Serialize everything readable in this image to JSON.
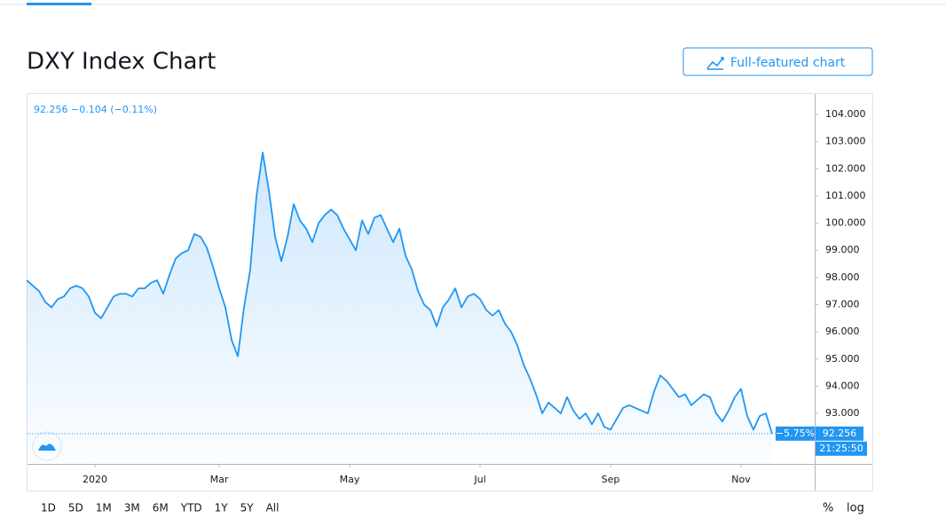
{
  "page": {
    "title": "DXY Index Chart",
    "button": "Full-featured chart"
  },
  "chart_data": {
    "type": "line",
    "legend_text": "92.256 −0.104 (−0.11%)",
    "change_label": "−5.75%",
    "current_price": 92.256,
    "countdown": "21:25:50",
    "color": "#2196f3",
    "categories": [
      null,
      null,
      null,
      null,
      null,
      null,
      null,
      null,
      null,
      null,
      null,
      "2020",
      null,
      null,
      null,
      null,
      null,
      null,
      null,
      null,
      null,
      null,
      null,
      null,
      null,
      null,
      null,
      null,
      null,
      null,
      null,
      "Mar",
      null,
      null,
      null,
      null,
      null,
      null,
      null,
      null,
      null,
      null,
      null,
      null,
      null,
      null,
      null,
      null,
      null,
      null,
      null,
      null,
      "May",
      null,
      null,
      null,
      null,
      null,
      null,
      null,
      null,
      null,
      null,
      null,
      null,
      null,
      null,
      null,
      null,
      null,
      null,
      null,
      null,
      "Jul",
      null,
      null,
      null,
      null,
      null,
      null,
      null,
      null,
      null,
      null,
      null,
      null,
      null,
      null,
      null,
      null,
      null,
      null,
      null,
      null,
      "Sep",
      null,
      null,
      null,
      null,
      null,
      null,
      null,
      null,
      null,
      null,
      null,
      null,
      null,
      null,
      null,
      null,
      null,
      null,
      null,
      null,
      "Nov",
      null,
      null,
      null,
      null,
      null
    ],
    "values": [
      97.9,
      97.7,
      97.5,
      97.1,
      96.9,
      97.2,
      97.3,
      97.6,
      97.7,
      97.6,
      97.3,
      96.7,
      96.5,
      96.9,
      97.3,
      97.4,
      97.4,
      97.3,
      97.6,
      97.6,
      97.8,
      97.9,
      97.4,
      98.1,
      98.7,
      98.9,
      99.0,
      99.6,
      99.5,
      99.1,
      98.4,
      97.6,
      96.9,
      95.7,
      95.1,
      96.9,
      98.3,
      101.0,
      102.6,
      101.2,
      99.5,
      98.6,
      99.5,
      100.7,
      100.1,
      99.8,
      99.3,
      100.0,
      100.3,
      100.5,
      100.3,
      99.8,
      99.4,
      99.0,
      100.1,
      99.6,
      100.2,
      100.3,
      99.8,
      99.3,
      99.8,
      98.8,
      98.3,
      97.5,
      97.0,
      96.8,
      96.2,
      96.9,
      97.2,
      97.6,
      96.9,
      97.3,
      97.4,
      97.2,
      96.8,
      96.6,
      96.8,
      96.3,
      96.0,
      95.5,
      94.8,
      94.3,
      93.7,
      93.0,
      93.4,
      93.2,
      93.0,
      93.6,
      93.1,
      92.8,
      93.0,
      92.6,
      93.0,
      92.5,
      92.4,
      92.8,
      93.2,
      93.3,
      93.2,
      93.1,
      93.0,
      93.8,
      94.4,
      94.2,
      93.9,
      93.6,
      93.7,
      93.3,
      93.5,
      93.7,
      93.6,
      93.0,
      92.7,
      93.1,
      93.6,
      93.9,
      92.9,
      92.4,
      92.9,
      93.0,
      92.256
    ],
    "ylim": [
      91.14,
      104.72
    ],
    "yticks": [
      {
        "value": 93,
        "label": "93.000"
      },
      {
        "value": 94,
        "label": "94.000"
      },
      {
        "value": 95,
        "label": "95.000"
      },
      {
        "value": 96,
        "label": "96.000"
      },
      {
        "value": 97,
        "label": "97.000"
      },
      {
        "value": 98,
        "label": "98.000"
      },
      {
        "value": 99,
        "label": "99.000"
      },
      {
        "value": 100,
        "label": "100.000"
      },
      {
        "value": 101,
        "label": "101.000"
      },
      {
        "value": 102,
        "label": "102.000"
      },
      {
        "value": 103,
        "label": "103.000"
      },
      {
        "value": 104,
        "label": "104.000"
      }
    ],
    "grid": false
  },
  "toolbar": {
    "ranges": [
      "1D",
      "5D",
      "1M",
      "3M",
      "6M",
      "YTD",
      "1Y",
      "5Y",
      "All"
    ],
    "options": [
      "%",
      "log"
    ]
  }
}
